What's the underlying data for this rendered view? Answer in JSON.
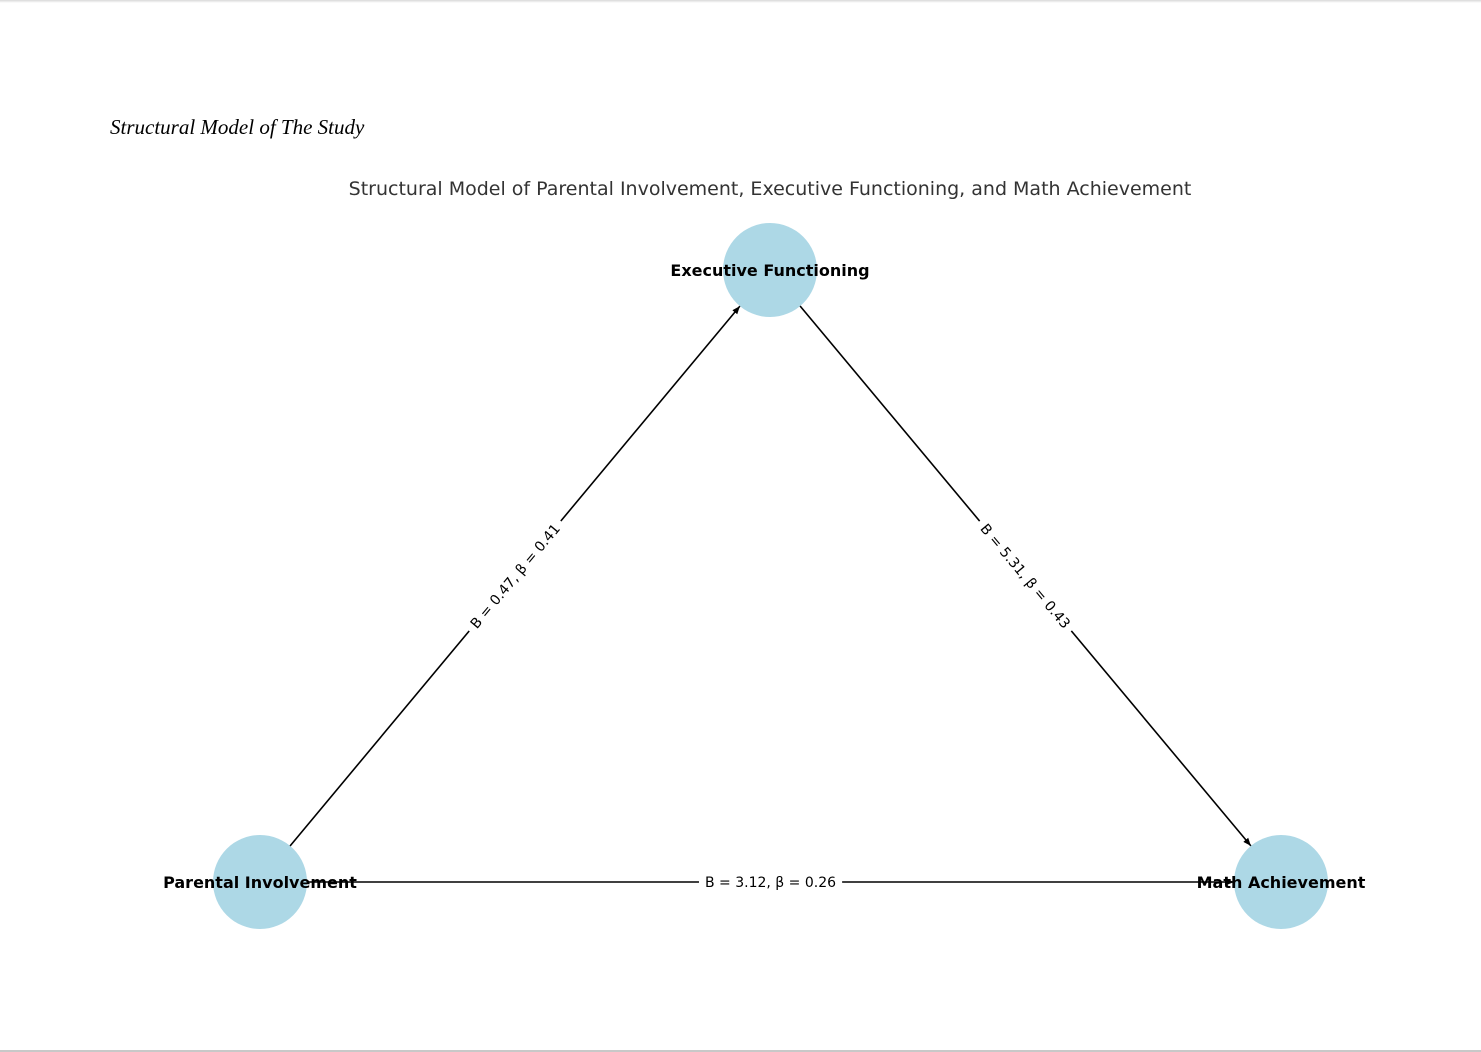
{
  "caption": "Structural Model of The Study",
  "diagram": {
    "title": "Structural Model of Parental Involvement, Executive Functioning, and Math Achievement",
    "node_color": "#add8e6",
    "edge_color": "#000000",
    "nodes": [
      {
        "id": "ef",
        "label": "Executive Functioning"
      },
      {
        "id": "pi",
        "label": "Parental Involvement"
      },
      {
        "id": "ma",
        "label": "Math Achievement"
      }
    ],
    "edges": [
      {
        "from": "pi",
        "to": "ef",
        "label": "B = 0.47, β = 0.41"
      },
      {
        "from": "ef",
        "to": "ma",
        "label": "B = 5.31, β = 0.43"
      },
      {
        "from": "pi",
        "to": "ma",
        "label": "B = 3.12, β = 0.26"
      }
    ]
  }
}
